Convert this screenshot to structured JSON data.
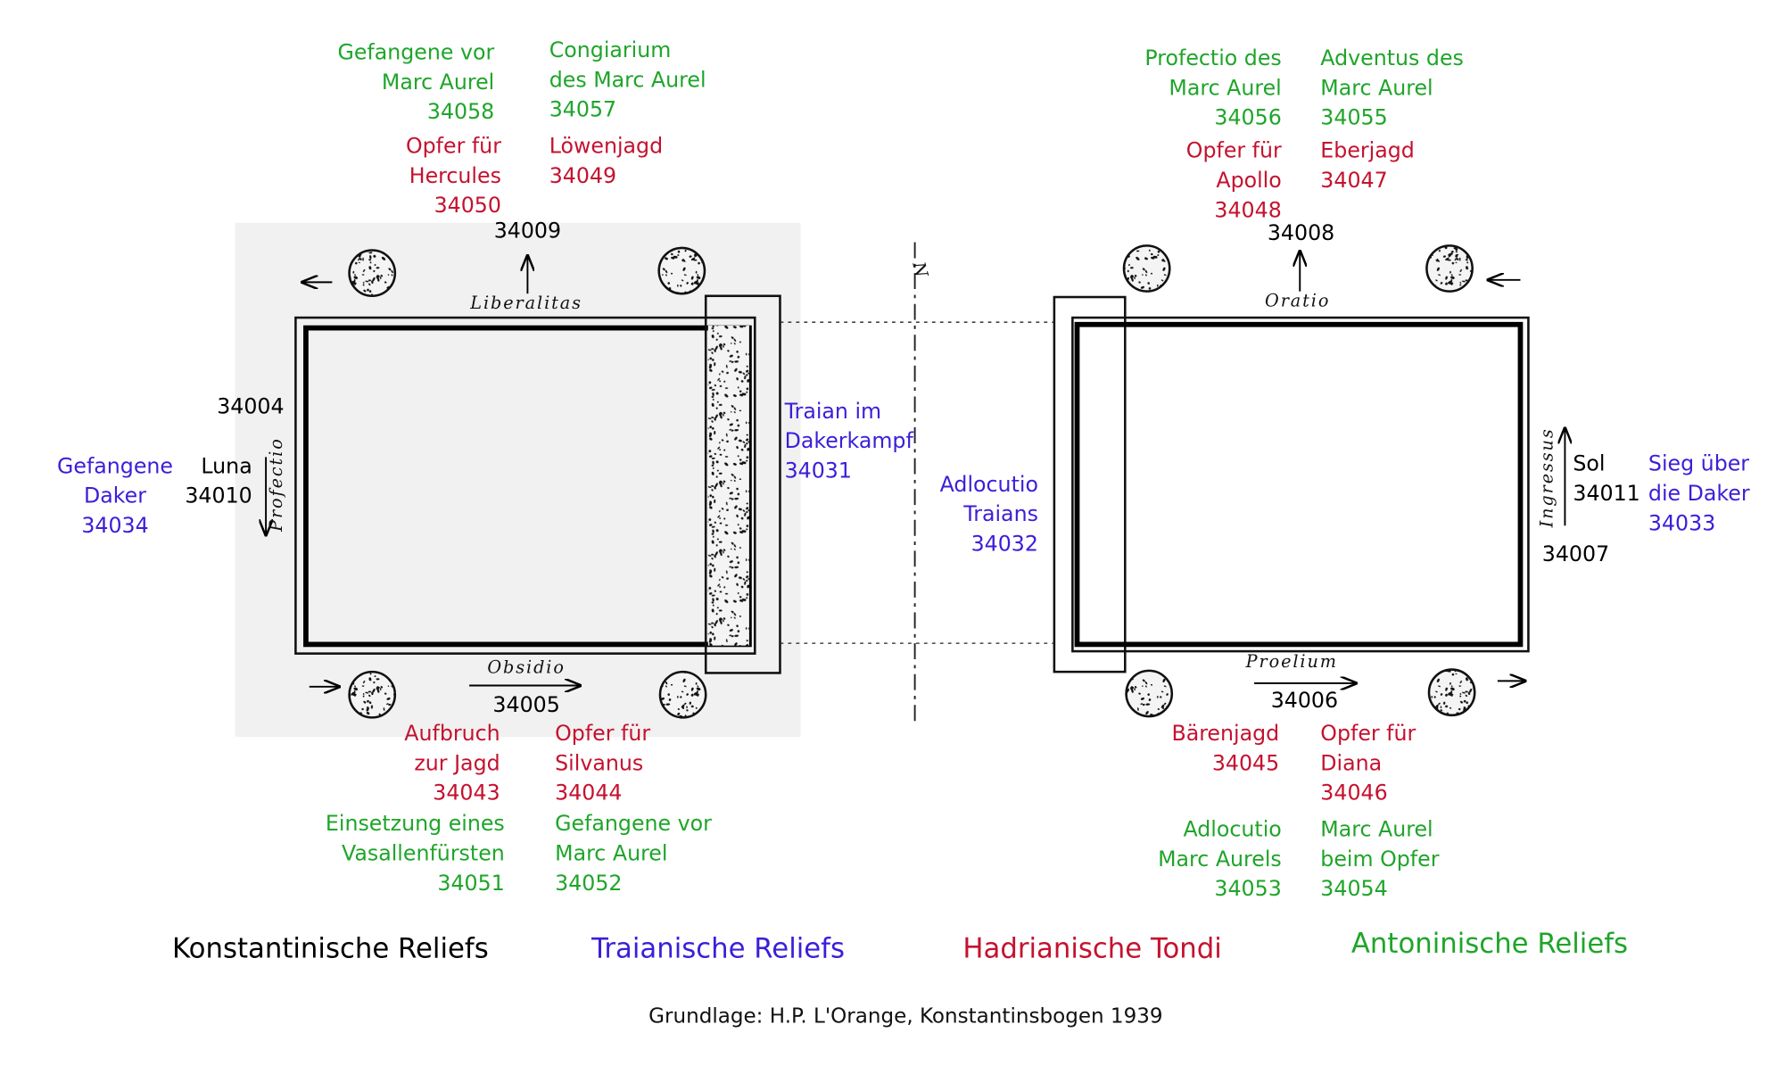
{
  "labels": [
    {
      "lines": [
        "Gefangene vor",
        "Marc Aurel",
        "34058"
      ]
    },
    {
      "lines": [
        "Congiarium",
        "des Marc Aurel",
        "34057"
      ]
    },
    {
      "lines": [
        "Opfer für",
        "Hercules",
        "34050"
      ]
    },
    {
      "lines": [
        "Löwenjagd",
        "34049"
      ]
    },
    {
      "lines": [
        "34009"
      ]
    },
    {
      "lines": [
        "Profectio des",
        "Marc Aurel",
        "34056"
      ]
    },
    {
      "lines": [
        "Adventus des",
        "Marc Aurel",
        "34055"
      ]
    },
    {
      "lines": [
        "Opfer für",
        "Apollo",
        "34048"
      ]
    },
    {
      "lines": [
        "Eberjagd",
        "34047"
      ]
    },
    {
      "lines": [
        "34008"
      ]
    },
    {
      "lines": [
        "34004"
      ]
    },
    {
      "lines": [
        "Gefangene",
        "Daker",
        "34034"
      ]
    },
    {
      "lines": [
        "Luna",
        "34010"
      ]
    },
    {
      "lines": [
        "Traian im",
        "Dakerkampf",
        "34031"
      ]
    },
    {
      "lines": [
        "Adlocutio",
        "Traians",
        "34032"
      ]
    },
    {
      "lines": [
        "Sol",
        "34011"
      ]
    },
    {
      "lines": [
        "Sieg über",
        "die Daker",
        "34033"
      ]
    },
    {
      "lines": [
        "34007"
      ]
    },
    {
      "lines": [
        "34005"
      ]
    },
    {
      "lines": [
        "34006"
      ]
    },
    {
      "lines": [
        "Aufbruch",
        "zur Jagd",
        "34043"
      ]
    },
    {
      "lines": [
        "Opfer für",
        "Silvanus",
        "34044"
      ]
    },
    {
      "lines": [
        "Einsetzung eines",
        "Vasallenfürsten",
        "34051"
      ]
    },
    {
      "lines": [
        "Gefangene vor",
        "Marc Aurel",
        "34052"
      ]
    },
    {
      "lines": [
        "Bärenjagd",
        "34045"
      ]
    },
    {
      "lines": [
        "Opfer für",
        "Diana",
        "34046"
      ]
    },
    {
      "lines": [
        "Adlocutio",
        "Marc Aurels",
        "34053"
      ]
    },
    {
      "lines": [
        "Marc Aurel",
        "beim Opfer",
        "34054"
      ]
    }
  ],
  "inscriptions": [
    "Liberalitas",
    "Obsidio",
    "Profectio",
    "Oratio",
    "Proelium",
    "Ingressus",
    "N"
  ],
  "legend": [
    "Konstantinische Reliefs",
    "Traianische Reliefs",
    "Hadrianische Tondi",
    "Antoninische Reliefs"
  ],
  "credit": "Grundlage: H.P. L'Orange, Konstantinsbogen 1939"
}
